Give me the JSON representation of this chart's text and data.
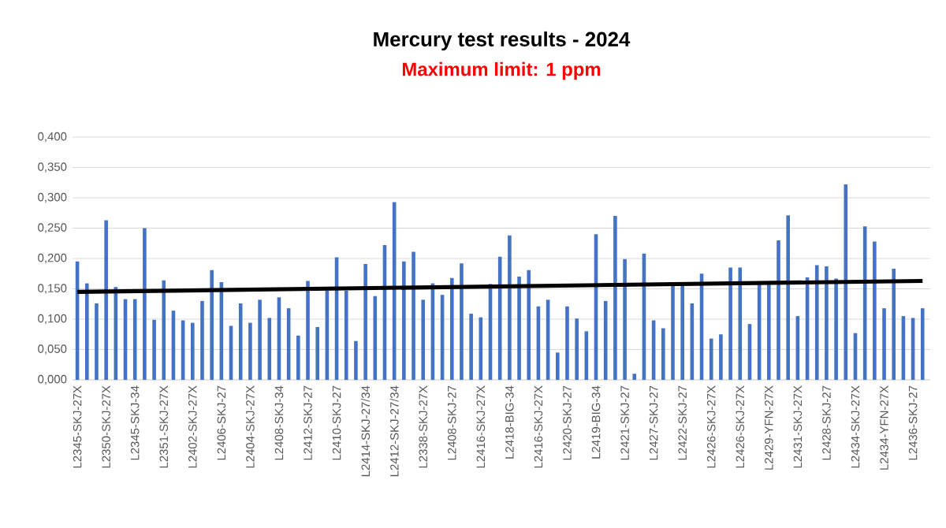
{
  "chart_data": {
    "type": "bar",
    "title": "Mercury test results - 2024",
    "subtitle": "Maximum limit: 1 ppm",
    "categories": [
      "L2345-SKJ-27X",
      null,
      null,
      "L2350-SKJ-27X",
      null,
      null,
      "L2345-SKJ-34",
      null,
      null,
      "L2351-SKJ-27X",
      null,
      null,
      "L2402-SKJ-27X",
      null,
      null,
      "L2406-SKJ-27",
      null,
      null,
      "L2404-SKJ-27X",
      null,
      null,
      "L2408-SKJ-34",
      null,
      null,
      "L2412-SKJ-27",
      null,
      null,
      "L2410-SKJ-27",
      null,
      null,
      "L2414-SKJ-27/34",
      null,
      null,
      "L2412-SKJ-27/34",
      null,
      null,
      "L2338-SKJ-27X",
      null,
      null,
      "L2408-SKJ-27",
      null,
      null,
      "L2416-SKJ-27X",
      null,
      null,
      "L2418-BIG-34",
      null,
      null,
      "L2416-SKJ-27X",
      null,
      null,
      "L2420-SKJ-27",
      null,
      null,
      "L2419-BIG-34",
      null,
      null,
      "L2421-SKJ-27",
      null,
      null,
      "L2427-SKJ-27",
      null,
      null,
      "L2422-SKJ-27",
      null,
      null,
      "L2426-SKJ-27X",
      null,
      null,
      "L2426-SKJ-27X",
      null,
      null,
      "L2429-YFN-27X",
      null,
      null,
      "L2431-SKJ-27X",
      null,
      null,
      "L2428-SKJ-27",
      null,
      null,
      "L2434-SKJ-27X",
      null,
      null,
      "L2434-YFN-27X",
      null,
      null,
      "L2436-SKJ-27",
      null
    ],
    "series": [
      {
        "color": "#4472c4",
        "values": [
          0.195,
          0.159,
          0.126,
          0.263,
          0.153,
          0.133,
          0.133,
          0.25,
          0.099,
          0.164,
          0.114,
          0.098,
          0.094,
          0.13,
          0.181,
          0.161,
          0.089,
          0.126,
          0.094,
          0.132,
          0.102,
          0.136,
          0.118,
          0.073,
          0.163,
          0.087,
          0.147,
          0.202,
          0.147,
          0.064,
          0.191,
          0.138,
          0.222,
          0.293,
          0.195,
          0.211,
          0.132,
          0.159,
          0.14,
          0.168,
          0.192,
          0.109,
          0.103,
          0.158,
          0.203,
          0.238,
          0.17,
          0.181,
          0.121,
          0.132,
          0.045,
          0.121,
          0.101,
          0.08,
          0.24,
          0.13,
          0.27,
          0.199,
          0.01,
          0.208,
          0.098,
          0.085,
          0.158,
          0.158,
          0.126,
          0.175,
          0.068,
          0.075,
          0.185,
          0.185,
          0.092,
          0.157,
          0.157,
          0.23,
          0.271,
          0.105,
          0.169,
          0.189,
          0.187,
          0.167,
          0.322,
          0.077,
          0.253,
          0.228,
          0.118,
          0.183,
          0.105,
          0.102,
          0.118
        ]
      },
      {
        "type": "line",
        "color": "#000000",
        "values": [
          0.145,
          null,
          null,
          null,
          null,
          null,
          null,
          null,
          null,
          null,
          null,
          null,
          null,
          null,
          null,
          null,
          null,
          null,
          null,
          null,
          null,
          null,
          null,
          null,
          null,
          null,
          null,
          null,
          null,
          null,
          null,
          null,
          null,
          null,
          null,
          null,
          null,
          null,
          null,
          null,
          null,
          null,
          null,
          null,
          null,
          null,
          null,
          null,
          null,
          null,
          null,
          null,
          null,
          null,
          null,
          null,
          null,
          null,
          null,
          null,
          null,
          null,
          null,
          null,
          null,
          null,
          null,
          null,
          null,
          null,
          null,
          null,
          null,
          null,
          null,
          null,
          null,
          null,
          null,
          null,
          null,
          null,
          null,
          null,
          null,
          null,
          null,
          null,
          0.163
        ]
      }
    ],
    "ylim": [
      0,
      0.4
    ],
    "yticks": [
      {
        "value": 0,
        "label": "0,000"
      },
      {
        "value": 0.05,
        "label": "0,050"
      },
      {
        "value": 0.1,
        "label": "0,100"
      },
      {
        "value": 0.15,
        "label": "0,150"
      },
      {
        "value": 0.2,
        "label": "0,200"
      },
      {
        "value": 0.25,
        "label": "0,250"
      },
      {
        "value": 0.3,
        "label": "0,300"
      },
      {
        "value": 0.35,
        "label": "0,350"
      },
      {
        "value": 0.4,
        "label": "0,400"
      }
    ],
    "grid": "y"
  }
}
